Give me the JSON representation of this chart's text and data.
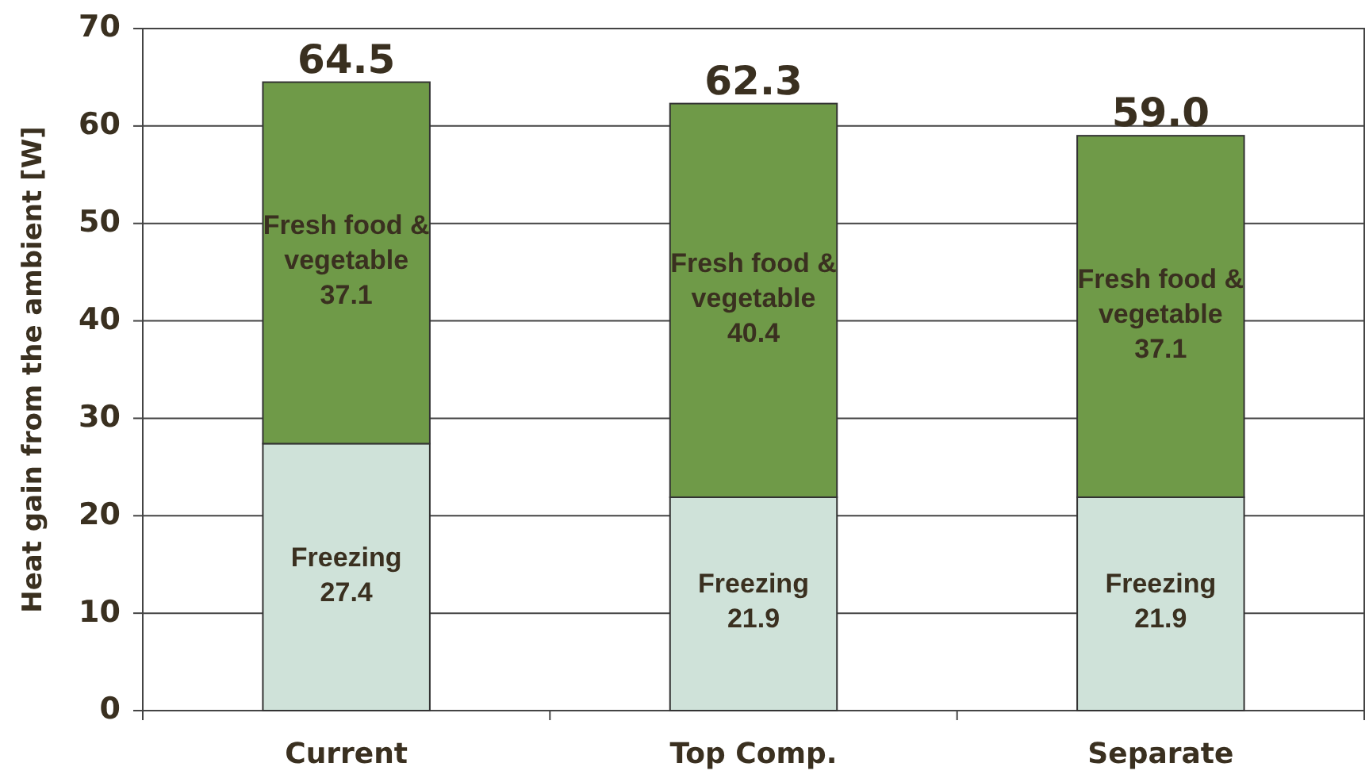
{
  "chart_data": {
    "type": "bar",
    "stacked": true,
    "ylabel": "Heat gain from the ambient [W]",
    "categories": [
      "Current",
      "Top Comp.",
      "Separate"
    ],
    "series": [
      {
        "name": "Freezing",
        "color": "#cfe2d9",
        "values": [
          27.4,
          21.9,
          21.9
        ]
      },
      {
        "name": "Fresh food & vegetable",
        "color": "#6f9a48",
        "values": [
          37.1,
          40.4,
          37.1
        ]
      }
    ],
    "totals": [
      "64.5",
      "62.3",
      "59.0"
    ],
    "data_labels": true,
    "ylim": [
      0,
      70
    ],
    "yticks": [
      0,
      10,
      20,
      30,
      40,
      50,
      60,
      70
    ],
    "grid": "y"
  }
}
